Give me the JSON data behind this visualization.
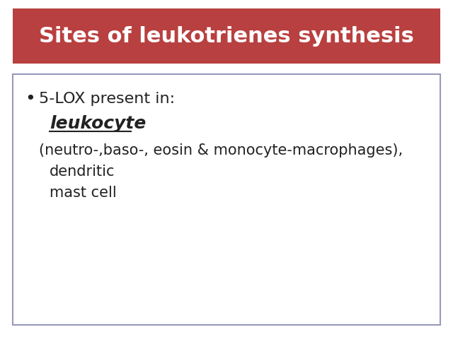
{
  "title": "Sites of leukotrienes synthesis",
  "title_bg_color": "#b94040",
  "title_text_color": "#ffffff",
  "slide_bg_color": "#ffffff",
  "border_color": "#9999bb",
  "bullet_line1": "5-LOX present in:",
  "bullet_leukocyte": "leukocyte",
  "bullet_line3": "(neutro-,baso-, eosin & monocyte-macrophages),",
  "bullet_line4": "dendritic",
  "bullet_line5": "mast cell",
  "text_color": "#222222",
  "title_fontsize": 22,
  "body_fontsize": 16,
  "leukocyte_fontsize": 18
}
